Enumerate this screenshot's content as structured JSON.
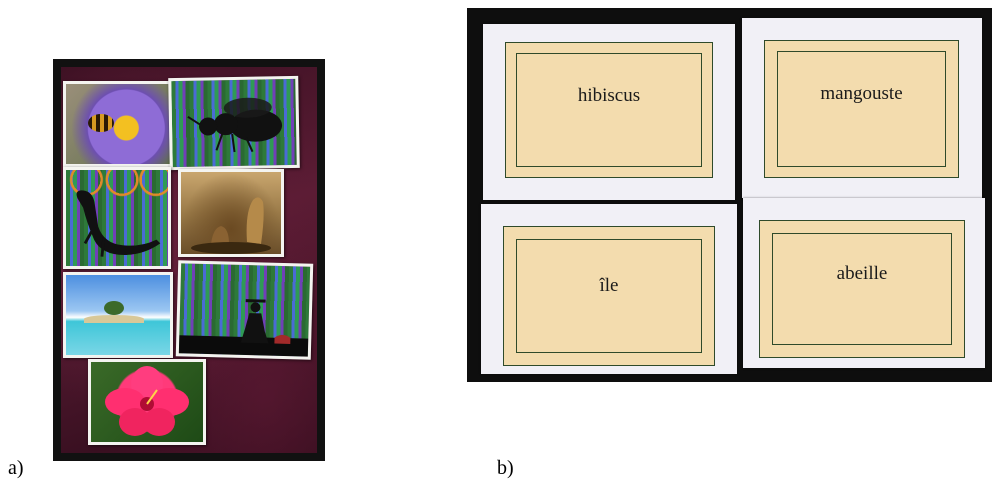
{
  "figure": {
    "caption_a": "a)",
    "caption_b": "b)"
  },
  "panel_a": {
    "cards": [
      {
        "subject": "bee-on-flower-photo"
      },
      {
        "subject": "bee-silhouette"
      },
      {
        "subject": "lizard-silhouette"
      },
      {
        "subject": "mongoose-photo"
      },
      {
        "subject": "island-photo"
      },
      {
        "subject": "person-silhouette"
      },
      {
        "subject": "hibiscus-photo"
      }
    ]
  },
  "panel_b": {
    "word_cards": [
      {
        "word": "hibiscus"
      },
      {
        "word": "mangouste"
      },
      {
        "word": "île"
      },
      {
        "word": "abeille"
      }
    ]
  }
}
